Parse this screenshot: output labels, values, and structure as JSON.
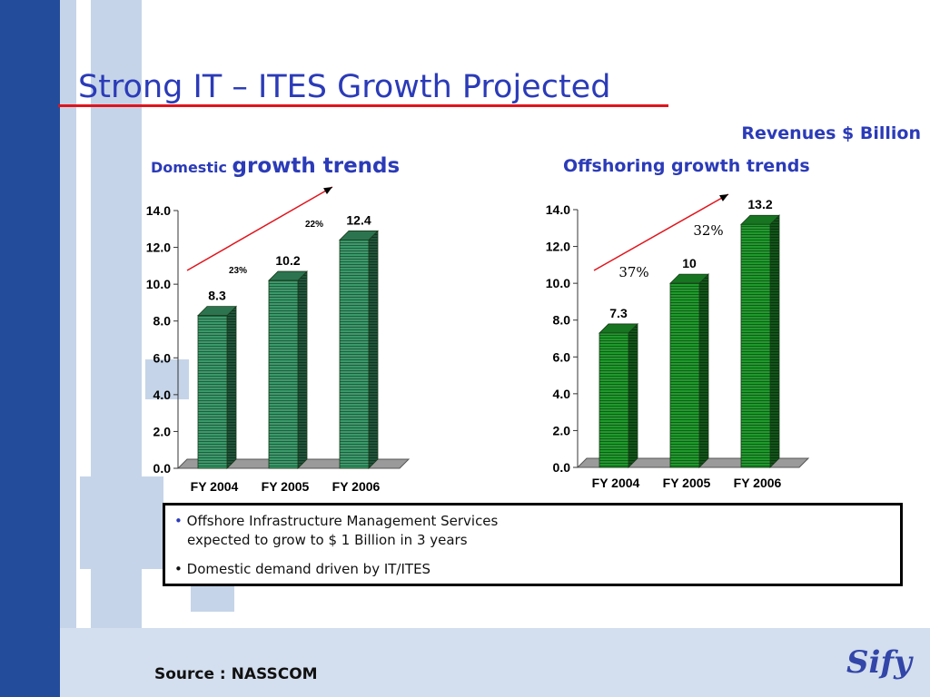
{
  "slide": {
    "title": "Strong IT – ITES Growth Projected",
    "units_label": "Revenues $ Billion",
    "domestic_title_small": "Domestic",
    "domestic_title_large": "growth trends",
    "offshore_title": "Offshoring growth trends",
    "bullets": [
      "Offshore Infrastructure Management   Services",
      "expected to grow to $ 1 Billion in 3 years",
      "Domestic demand driven by IT/ITES"
    ],
    "bullet_glyph": "•",
    "source": "Source : NASSCOM",
    "logo_text": "Sify"
  },
  "colors": {
    "title": "#2b3bb8",
    "rule": "#e0141c",
    "domestic_bar": "#3a9a6a",
    "offshore_bar": "#1f9a2c",
    "background_stripes": "#c5d4e8",
    "dark_stripe": "#234c9a"
  },
  "chart_data": [
    {
      "type": "bar",
      "categories": [
        "FY 2004",
        "FY 2005",
        "FY 2006"
      ],
      "values": [
        8.3,
        10.2,
        12.4
      ],
      "value_labels": [
        "8.3",
        "10.2",
        "12.4"
      ],
      "ylim": [
        0,
        14
      ],
      "yticks": [
        "0.0",
        "2.0",
        "4.0",
        "6.0",
        "8.0",
        "10.0",
        "12.0",
        "14.0"
      ],
      "growth_annotations": [
        "23%",
        "22%"
      ]
    },
    {
      "type": "bar",
      "categories": [
        "FY 2004",
        "FY 2005",
        "FY 2006"
      ],
      "values": [
        7.3,
        10,
        13.2
      ],
      "value_labels": [
        "7.3",
        "10",
        "13.2"
      ],
      "ylim": [
        0,
        14
      ],
      "yticks": [
        "0.0",
        "2.0",
        "4.0",
        "6.0",
        "8.0",
        "10.0",
        "12.0",
        "14.0"
      ],
      "growth_annotations": [
        "37%",
        "32%"
      ]
    }
  ]
}
